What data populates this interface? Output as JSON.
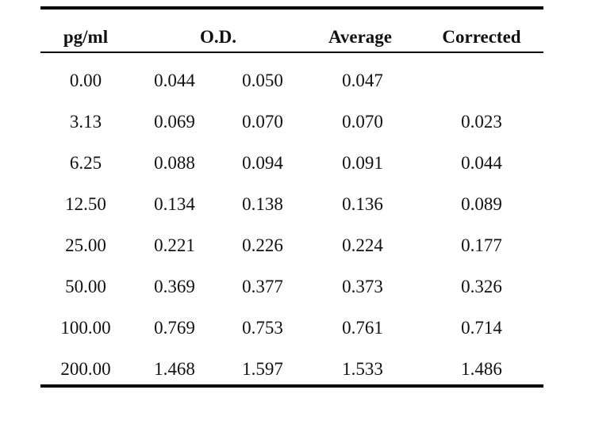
{
  "table": {
    "headers": {
      "concentration": "pg/ml",
      "od": "O.D.",
      "average": "Average",
      "corrected": "Corrected"
    },
    "rows": [
      {
        "concentration": "0.00",
        "od1": "0.044",
        "od2": "0.050",
        "average": "0.047",
        "corrected": ""
      },
      {
        "concentration": "3.13",
        "od1": "0.069",
        "od2": "0.070",
        "average": "0.070",
        "corrected": "0.023"
      },
      {
        "concentration": "6.25",
        "od1": "0.088",
        "od2": "0.094",
        "average": "0.091",
        "corrected": "0.044"
      },
      {
        "concentration": "12.50",
        "od1": "0.134",
        "od2": "0.138",
        "average": "0.136",
        "corrected": "0.089"
      },
      {
        "concentration": "25.00",
        "od1": "0.221",
        "od2": "0.226",
        "average": "0.224",
        "corrected": "0.177"
      },
      {
        "concentration": "50.00",
        "od1": "0.369",
        "od2": "0.377",
        "average": "0.373",
        "corrected": "0.326"
      },
      {
        "concentration": "100.00",
        "od1": "0.769",
        "od2": "0.753",
        "average": "0.761",
        "corrected": "0.714"
      },
      {
        "concentration": "200.00",
        "od1": "1.468",
        "od2": "1.597",
        "average": "1.533",
        "corrected": "1.486"
      }
    ]
  }
}
